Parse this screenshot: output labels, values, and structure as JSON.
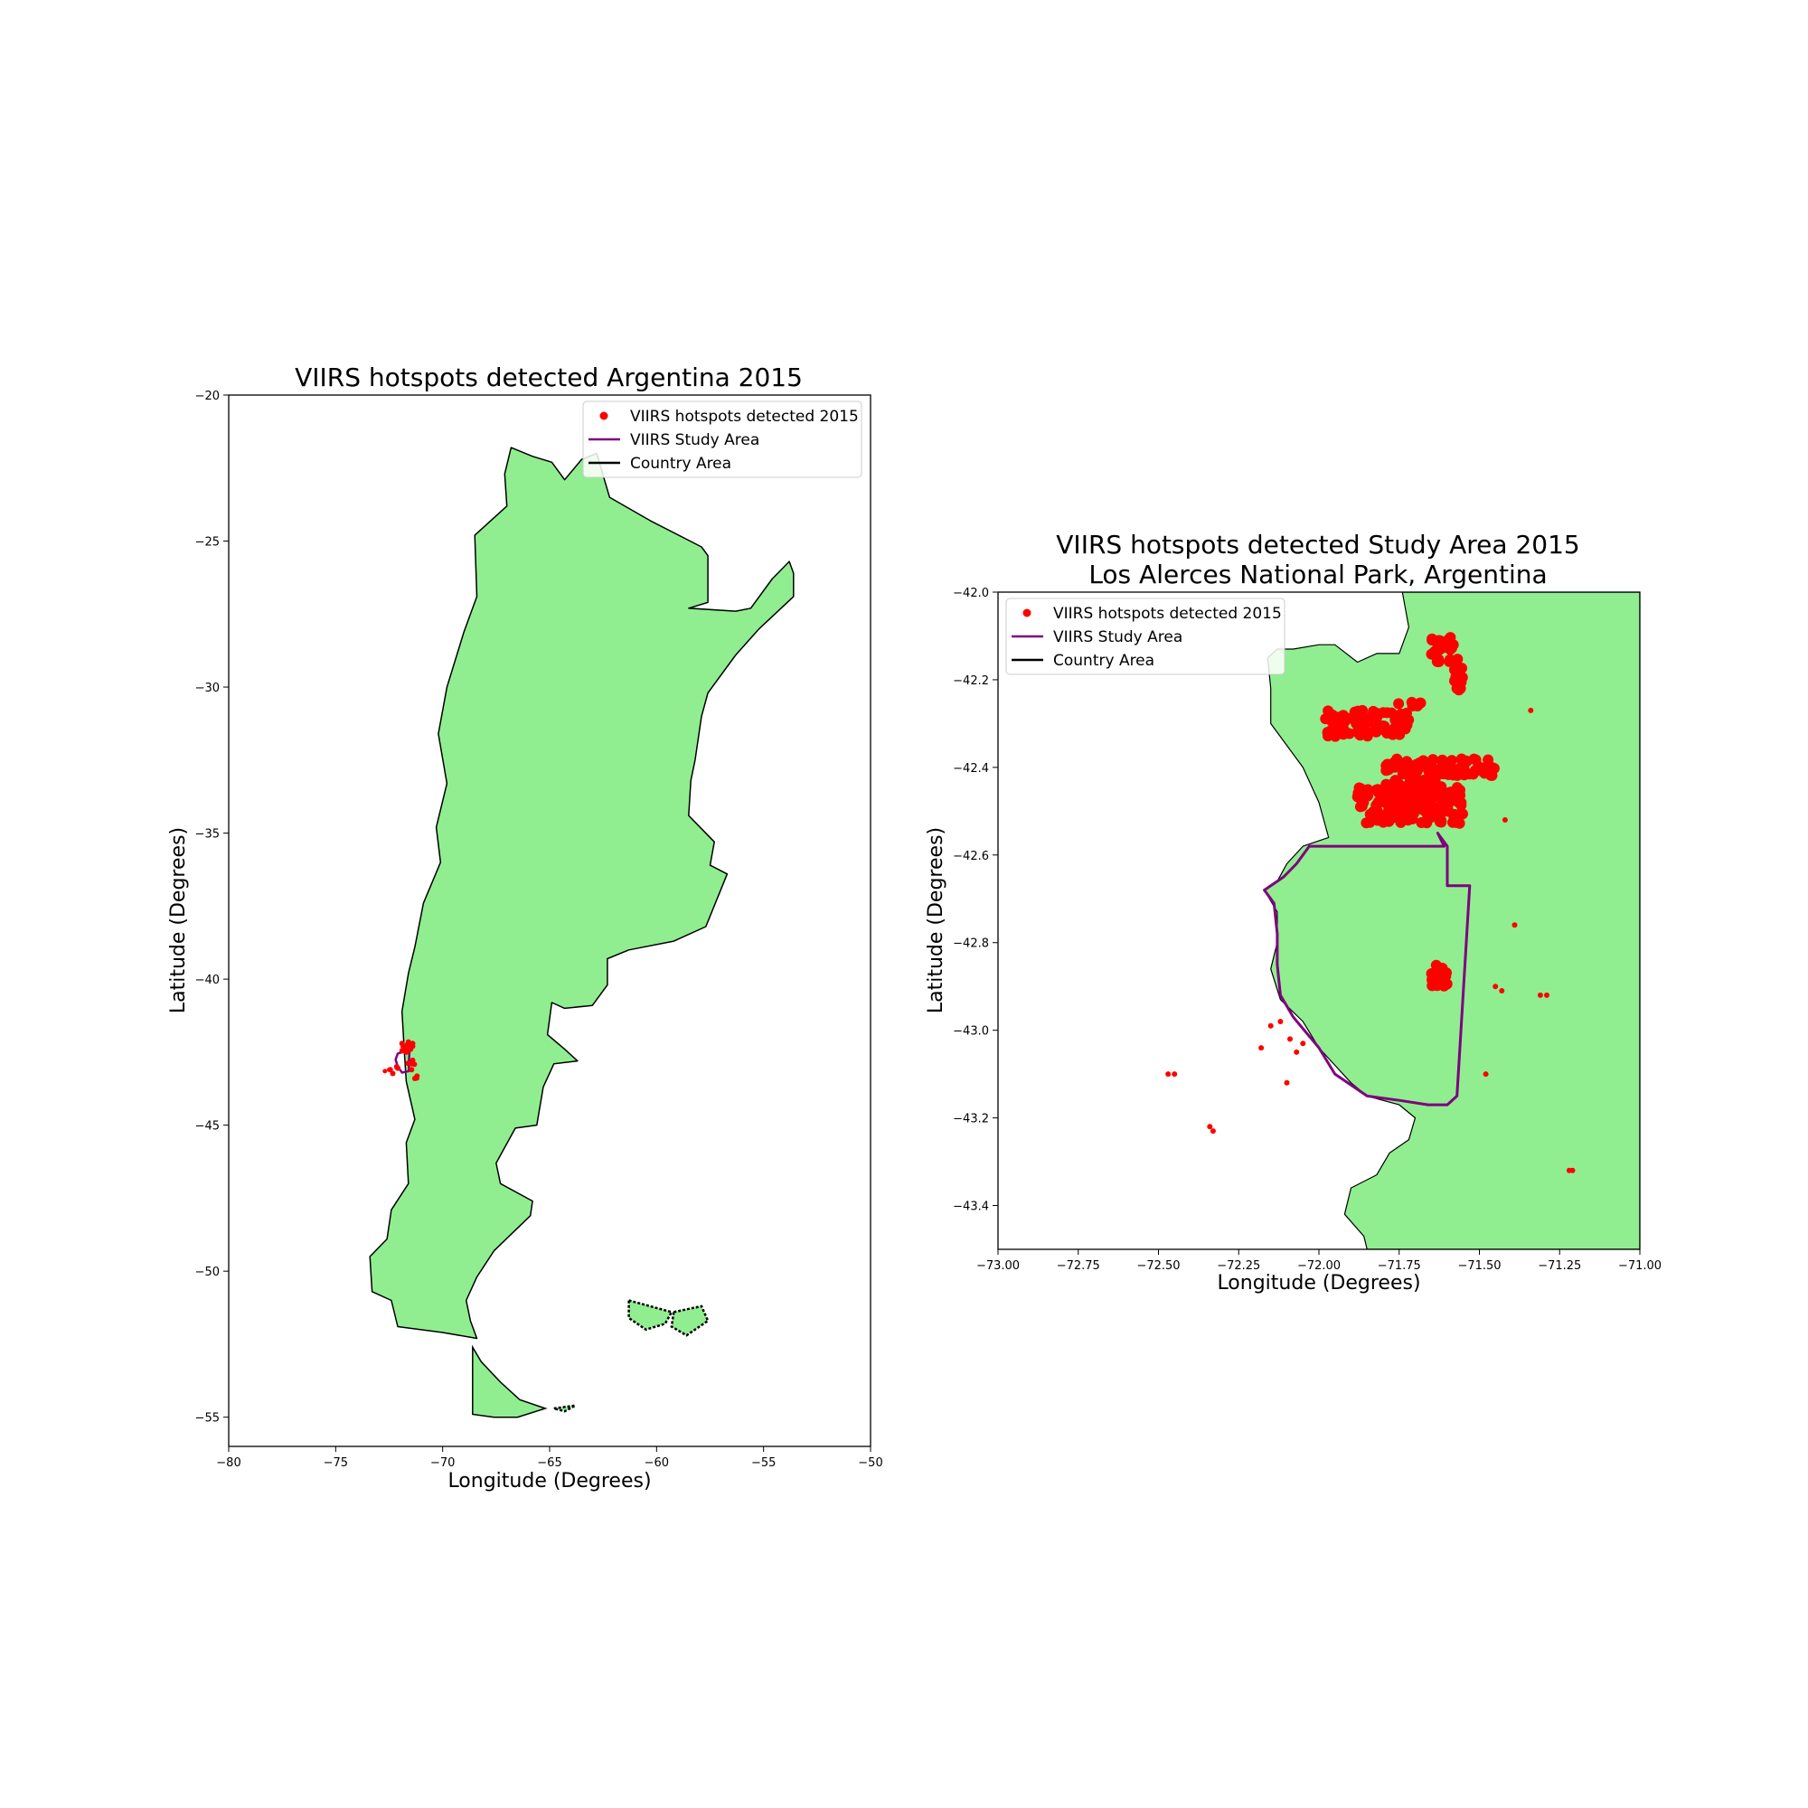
{
  "figure": {
    "colors": {
      "land": "#90ee90",
      "country_edge": "#000000",
      "study_area": "#800080",
      "hotspot": "#ff0000",
      "background": "#ffffff"
    }
  },
  "chart_data": [
    {
      "type": "scatter",
      "title": "VIIRS hotspots detected Argentina 2015",
      "xlabel": "Longitude (Degrees)",
      "ylabel": "Latitude (Degrees)",
      "xlim": [
        -80,
        -50
      ],
      "ylim": [
        -56,
        -20
      ],
      "xticks": [
        -80,
        -75,
        -70,
        -65,
        -60,
        -55,
        -50
      ],
      "xtick_labels": [
        "−80",
        "−75",
        "−70",
        "−65",
        "−60",
        "−55",
        "−50"
      ],
      "yticks": [
        -55,
        -50,
        -45,
        -40,
        -35,
        -30,
        -25,
        -20
      ],
      "ytick_labels": [
        "−55",
        "−50",
        "−45",
        "−40",
        "−35",
        "−30",
        "−25",
        "−20"
      ],
      "grid": false,
      "legend_position": "top-right",
      "legend": [
        {
          "label": "VIIRS hotspots detected 2015",
          "kind": "point",
          "color": "#ff0000"
        },
        {
          "label": "VIIRS Study Area",
          "kind": "line",
          "color": "#800080"
        },
        {
          "label": "Country Area",
          "kind": "line",
          "color": "#000000"
        }
      ],
      "country_outline": [
        [
          -66.8,
          -21.8
        ],
        [
          -65.8,
          -22.1
        ],
        [
          -64.9,
          -22.3
        ],
        [
          -64.3,
          -22.9
        ],
        [
          -63.5,
          -22.2
        ],
        [
          -62.8,
          -22.0
        ],
        [
          -62.2,
          -23.5
        ],
        [
          -60.3,
          -24.3
        ],
        [
          -57.9,
          -25.2
        ],
        [
          -57.6,
          -25.5
        ],
        [
          -57.6,
          -27.1
        ],
        [
          -58.5,
          -27.3
        ],
        [
          -56.3,
          -27.4
        ],
        [
          -55.6,
          -27.3
        ],
        [
          -54.6,
          -26.3
        ],
        [
          -53.8,
          -25.7
        ],
        [
          -53.6,
          -26.1
        ],
        [
          -53.6,
          -26.9
        ],
        [
          -55.2,
          -28.0
        ],
        [
          -56.3,
          -28.9
        ],
        [
          -57.6,
          -30.2
        ],
        [
          -57.9,
          -31.0
        ],
        [
          -58.2,
          -32.5
        ],
        [
          -58.4,
          -33.2
        ],
        [
          -58.5,
          -34.4
        ],
        [
          -57.3,
          -35.3
        ],
        [
          -57.5,
          -36.1
        ],
        [
          -56.7,
          -36.4
        ],
        [
          -57.7,
          -38.2
        ],
        [
          -59.2,
          -38.7
        ],
        [
          -61.3,
          -39.0
        ],
        [
          -62.3,
          -39.3
        ],
        [
          -62.3,
          -40.2
        ],
        [
          -63.0,
          -40.9
        ],
        [
          -64.3,
          -41.0
        ],
        [
          -64.9,
          -40.8
        ],
        [
          -65.1,
          -41.9
        ],
        [
          -64.3,
          -42.4
        ],
        [
          -63.7,
          -42.8
        ],
        [
          -64.8,
          -42.9
        ],
        [
          -65.3,
          -43.7
        ],
        [
          -65.6,
          -45.0
        ],
        [
          -66.6,
          -45.1
        ],
        [
          -67.5,
          -46.3
        ],
        [
          -67.3,
          -47.0
        ],
        [
          -65.8,
          -47.6
        ],
        [
          -65.9,
          -48.1
        ],
        [
          -67.6,
          -49.3
        ],
        [
          -68.4,
          -50.2
        ],
        [
          -68.9,
          -51.0
        ],
        [
          -68.7,
          -51.7
        ],
        [
          -68.4,
          -52.3
        ],
        [
          -70.0,
          -52.1
        ],
        [
          -72.1,
          -51.9
        ],
        [
          -72.4,
          -51.0
        ],
        [
          -73.3,
          -50.7
        ],
        [
          -73.4,
          -49.5
        ],
        [
          -72.6,
          -48.9
        ],
        [
          -72.4,
          -47.9
        ],
        [
          -71.6,
          -47.0
        ],
        [
          -71.7,
          -45.6
        ],
        [
          -71.3,
          -44.8
        ],
        [
          -71.7,
          -43.5
        ],
        [
          -71.8,
          -42.4
        ],
        [
          -71.9,
          -41.1
        ],
        [
          -71.6,
          -39.8
        ],
        [
          -71.3,
          -38.9
        ],
        [
          -70.9,
          -37.4
        ],
        [
          -70.1,
          -36.0
        ],
        [
          -70.3,
          -34.8
        ],
        [
          -69.8,
          -33.3
        ],
        [
          -70.2,
          -31.6
        ],
        [
          -69.8,
          -30.0
        ],
        [
          -69.0,
          -28.1
        ],
        [
          -68.4,
          -26.9
        ],
        [
          -68.5,
          -24.8
        ],
        [
          -67.0,
          -23.8
        ],
        [
          -67.1,
          -22.7
        ],
        [
          -66.8,
          -21.8
        ]
      ],
      "tierra_del_fuego": [
        [
          -68.6,
          -52.6
        ],
        [
          -68.6,
          -54.9
        ],
        [
          -67.6,
          -55.0
        ],
        [
          -66.5,
          -55.0
        ],
        [
          -65.2,
          -54.7
        ],
        [
          -66.4,
          -54.4
        ],
        [
          -67.3,
          -53.8
        ],
        [
          -68.2,
          -53.1
        ],
        [
          -68.6,
          -52.6
        ]
      ],
      "islands": [
        [
          [
            -61.3,
            -51.0
          ],
          [
            -59.3,
            -51.4
          ],
          [
            -59.6,
            -51.8
          ],
          [
            -60.5,
            -52.0
          ],
          [
            -61.3,
            -51.6
          ],
          [
            -61.3,
            -51.0
          ]
        ],
        [
          [
            -59.2,
            -51.4
          ],
          [
            -57.9,
            -51.2
          ],
          [
            -57.6,
            -51.7
          ],
          [
            -58.6,
            -52.2
          ],
          [
            -59.3,
            -51.9
          ],
          [
            -59.2,
            -51.4
          ]
        ],
        [
          [
            -64.8,
            -54.7
          ],
          [
            -63.8,
            -54.6
          ],
          [
            -64.3,
            -54.8
          ],
          [
            -64.8,
            -54.7
          ]
        ]
      ],
      "study_area_outline": [
        [
          -71.9,
          -42.5
        ],
        [
          -71.55,
          -42.5
        ],
        [
          -71.57,
          -42.7
        ],
        [
          -71.58,
          -43.15
        ],
        [
          -71.9,
          -43.2
        ],
        [
          -72.1,
          -43.0
        ],
        [
          -72.2,
          -42.75
        ],
        [
          -72.1,
          -42.55
        ],
        [
          -71.9,
          -42.5
        ]
      ],
      "hotspots": [
        [
          -71.9,
          -42.2
        ],
        [
          -71.6,
          -42.15
        ],
        [
          -71.5,
          -42.3
        ],
        [
          -71.7,
          -42.35
        ],
        [
          -71.9,
          -42.45
        ],
        [
          -71.6,
          -42.45
        ],
        [
          -71.8,
          -42.35
        ],
        [
          -71.5,
          -42.4
        ],
        [
          -71.4,
          -42.3
        ],
        [
          -71.7,
          -42.5
        ],
        [
          -71.85,
          -42.3
        ],
        [
          -71.4,
          -42.2
        ],
        [
          -71.65,
          -42.25
        ],
        [
          -71.55,
          -42.2
        ],
        [
          -71.62,
          -42.88
        ],
        [
          -71.45,
          -42.9
        ],
        [
          -71.32,
          -42.92
        ],
        [
          -71.4,
          -42.78
        ],
        [
          -71.45,
          -43.1
        ],
        [
          -72.1,
          -43.05
        ],
        [
          -72.15,
          -43.0
        ],
        [
          -72.45,
          -43.1
        ],
        [
          -72.33,
          -43.23
        ],
        [
          -71.2,
          -43.32
        ],
        [
          -71.3,
          -43.4
        ]
      ],
      "hotspots_far": [
        [
          -72.5,
          -43.1
        ],
        [
          -72.7,
          -43.15
        ],
        [
          -71.2,
          -43.4
        ]
      ]
    },
    {
      "type": "scatter",
      "title": "VIIRS hotspots detected Study Area 2015",
      "subtitle": "Los Alerces National Park, Argentina",
      "xlabel": "Longitude (Degrees)",
      "ylabel": "Latitude (Degrees)",
      "xlim": [
        -73.0,
        -71.0
      ],
      "ylim": [
        -43.5,
        -42.0
      ],
      "xticks": [
        -73.0,
        -72.75,
        -72.5,
        -72.25,
        -72.0,
        -71.75,
        -71.5,
        -71.25,
        -71.0
      ],
      "xtick_labels": [
        "−73.00",
        "−72.75",
        "−72.50",
        "−72.25",
        "−72.00",
        "−71.75",
        "−71.50",
        "−71.25",
        "−71.00"
      ],
      "yticks": [
        -43.4,
        -43.2,
        -43.0,
        -42.8,
        -42.6,
        -42.4,
        -42.2,
        -42.0
      ],
      "ytick_labels": [
        "−43.4",
        "−43.2",
        "−43.0",
        "−42.8",
        "−42.6",
        "−42.4",
        "−42.2",
        "−42.0"
      ],
      "grid": false,
      "legend_position": "top-left",
      "legend": [
        {
          "label": "VIIRS hotspots detected 2015",
          "kind": "point",
          "color": "#ff0000"
        },
        {
          "label": "VIIRS Study Area",
          "kind": "line",
          "color": "#800080"
        },
        {
          "label": "Country Area",
          "kind": "line",
          "color": "#000000"
        }
      ],
      "country_outline": [
        [
          -71.74,
          -42.0
        ],
        [
          -71.72,
          -42.08
        ],
        [
          -71.75,
          -42.14
        ],
        [
          -71.82,
          -42.14
        ],
        [
          -71.88,
          -42.16
        ],
        [
          -71.95,
          -42.12
        ],
        [
          -72.0,
          -42.12
        ],
        [
          -72.08,
          -42.13
        ],
        [
          -72.13,
          -42.13
        ],
        [
          -72.16,
          -42.15
        ],
        [
          -72.15,
          -42.22
        ],
        [
          -72.15,
          -42.3
        ],
        [
          -72.1,
          -42.35
        ],
        [
          -72.05,
          -42.4
        ],
        [
          -72.0,
          -42.48
        ],
        [
          -71.97,
          -42.56
        ],
        [
          -72.05,
          -42.58
        ],
        [
          -72.1,
          -42.62
        ],
        [
          -72.13,
          -42.66
        ],
        [
          -72.17,
          -42.68
        ],
        [
          -72.13,
          -42.73
        ],
        [
          -72.13,
          -42.8
        ],
        [
          -72.15,
          -42.86
        ],
        [
          -72.12,
          -42.93
        ],
        [
          -72.05,
          -42.98
        ],
        [
          -72.0,
          -43.04
        ],
        [
          -71.95,
          -43.08
        ],
        [
          -71.9,
          -43.12
        ],
        [
          -71.85,
          -43.15
        ],
        [
          -71.75,
          -43.17
        ],
        [
          -71.7,
          -43.2
        ],
        [
          -71.72,
          -43.25
        ],
        [
          -71.78,
          -43.28
        ],
        [
          -71.82,
          -43.33
        ],
        [
          -71.9,
          -43.36
        ],
        [
          -71.92,
          -43.42
        ],
        [
          -71.86,
          -43.47
        ],
        [
          -71.85,
          -43.5
        ],
        [
          -71.0,
          -43.5
        ],
        [
          -71.0,
          -42.0
        ],
        [
          -71.74,
          -42.0
        ]
      ],
      "study_area_outline": [
        [
          -72.03,
          -42.58
        ],
        [
          -71.61,
          -42.58
        ],
        [
          -71.63,
          -42.55
        ],
        [
          -71.6,
          -42.58
        ],
        [
          -71.6,
          -42.67
        ],
        [
          -71.53,
          -42.67
        ],
        [
          -71.57,
          -43.15
        ],
        [
          -71.6,
          -43.17
        ],
        [
          -71.66,
          -43.17
        ],
        [
          -71.75,
          -43.16
        ],
        [
          -71.85,
          -43.15
        ],
        [
          -71.95,
          -43.1
        ],
        [
          -72.0,
          -43.04
        ],
        [
          -72.08,
          -42.97
        ],
        [
          -72.12,
          -42.92
        ],
        [
          -72.13,
          -42.85
        ],
        [
          -72.13,
          -42.78
        ],
        [
          -72.14,
          -42.71
        ],
        [
          -72.17,
          -42.68
        ],
        [
          -72.11,
          -42.65
        ],
        [
          -72.07,
          -42.62
        ],
        [
          -72.03,
          -42.58
        ]
      ],
      "hotspot_clusters": [
        {
          "lon": [
            -71.98,
            -71.72
          ],
          "lat": [
            -42.27,
            -42.33
          ],
          "n": 90
        },
        {
          "lon": [
            -71.65,
            -71.58
          ],
          "lat": [
            -42.1,
            -42.16
          ],
          "n": 30
        },
        {
          "lon": [
            -71.58,
            -71.55
          ],
          "lat": [
            -42.15,
            -42.23
          ],
          "n": 20
        },
        {
          "lon": [
            -71.88,
            -71.55
          ],
          "lat": [
            -42.44,
            -42.53
          ],
          "n": 140
        },
        {
          "lon": [
            -71.8,
            -71.6
          ],
          "lat": [
            -42.38,
            -42.48
          ],
          "n": 80
        },
        {
          "lon": [
            -71.62,
            -71.45
          ],
          "lat": [
            -42.38,
            -42.42
          ],
          "n": 50
        },
        {
          "lon": [
            -71.76,
            -71.68
          ],
          "lat": [
            -42.25,
            -42.26
          ],
          "n": 6
        },
        {
          "lon": [
            -71.65,
            -71.6
          ],
          "lat": [
            -42.85,
            -42.9
          ],
          "n": 25
        }
      ],
      "hotspots": [
        [
          -71.34,
          -42.27
        ],
        [
          -71.42,
          -42.52
        ],
        [
          -71.39,
          -42.76
        ],
        [
          -71.45,
          -42.9
        ],
        [
          -71.43,
          -42.91
        ],
        [
          -71.31,
          -42.92
        ],
        [
          -71.29,
          -42.92
        ],
        [
          -71.48,
          -43.1
        ],
        [
          -72.18,
          -43.04
        ],
        [
          -72.15,
          -42.99
        ],
        [
          -72.12,
          -42.98
        ],
        [
          -72.09,
          -43.02
        ],
        [
          -72.05,
          -43.03
        ],
        [
          -72.07,
          -43.05
        ],
        [
          -72.1,
          -43.12
        ],
        [
          -72.47,
          -43.1
        ],
        [
          -72.45,
          -43.1
        ],
        [
          -72.34,
          -43.22
        ],
        [
          -72.33,
          -43.23
        ],
        [
          -71.21,
          -43.32
        ],
        [
          -71.22,
          -43.32
        ]
      ]
    }
  ]
}
